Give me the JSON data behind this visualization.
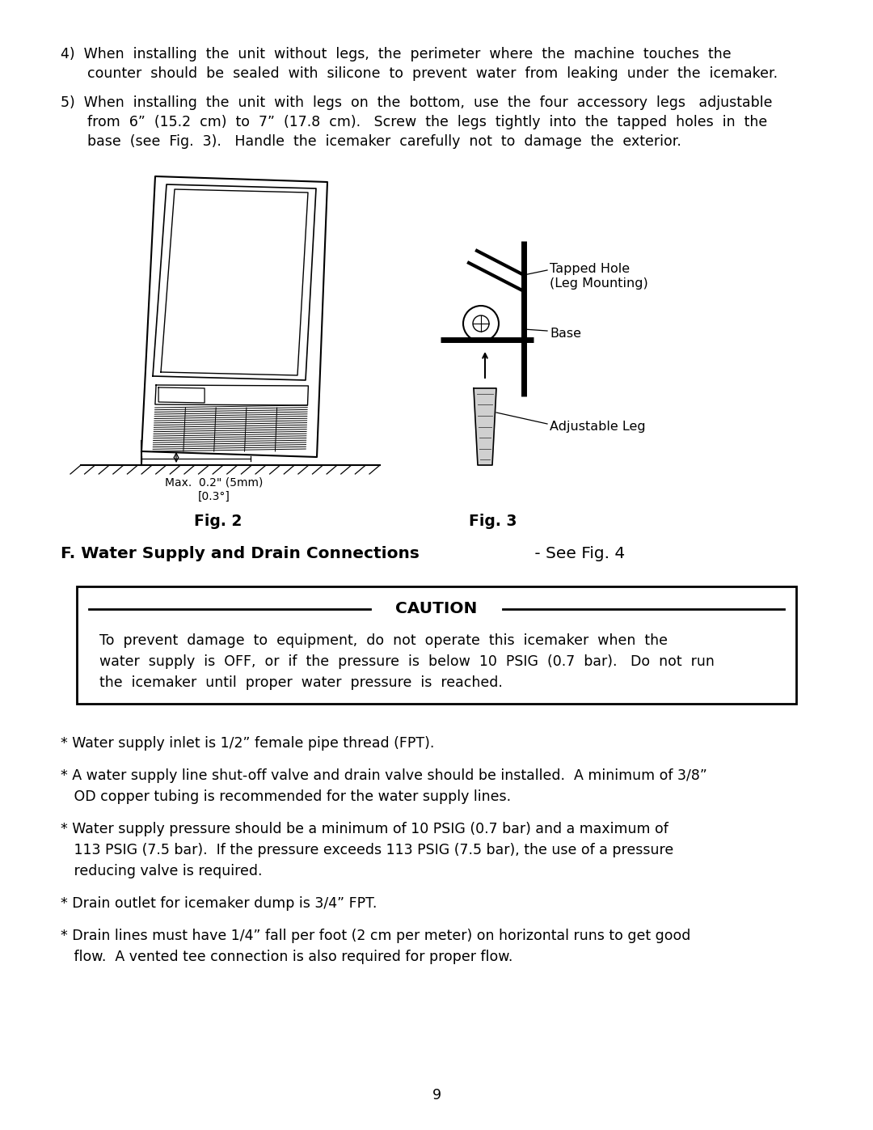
{
  "bg_color": "#ffffff",
  "text_color": "#000000",
  "para4_line1": "4)  When  installing  the  unit  without  legs,  the  perimeter  where  the  machine  touches  the",
  "para4_line2": "      counter  should  be  sealed  with  silicone  to  prevent  water  from  leaking  under  the  icemaker.",
  "para5_line1": "5)  When  installing  the  unit  with  legs  on  the  bottom,  use  the  four  accessory  legs   adjustable",
  "para5_line2": "      from  6”  (15.2  cm)  to  7”  (17.8  cm).   Screw  the  legs  tightly  into  the  tapped  holes  in  the",
  "para5_line3": "      base  (see  Fig.  3).   Handle  the  icemaker  carefully  not  to  damage  the  exterior.",
  "fig2_label": "Fig. 2",
  "fig3_label": "Fig. 3",
  "fig2_sublabel1": "Max.  0.2\" (5mm)",
  "fig2_sublabel2": "[0.3°]",
  "fig3_tapped1": "Tapped Hole",
  "fig3_tapped2": "(Leg Mounting)",
  "fig3_base": "Base",
  "fig3_leg": "Adjustable Leg",
  "section_bold": "F. Water Supply and Drain Connections",
  "section_normal": " - See Fig. 4",
  "caution_title": "CAUTION",
  "caution_line1": "To  prevent  damage  to  equipment,  do  not  operate  this  icemaker  when  the",
  "caution_line2": "water  supply  is  OFF,  or  if  the  pressure  is  below  10  PSIG  (0.7  bar).   Do  not  run",
  "caution_line3": "the  icemaker  until  proper  water  pressure  is  reached.",
  "b1": "* Water supply inlet is 1/2” female pipe thread (FPT).",
  "b2a": "* A water supply line shut-off valve and drain valve should be installed.  A minimum of 3/8”",
  "b2b": "   OD copper tubing is recommended for the water supply lines.",
  "b3a": "* Water supply pressure should be a minimum of 10 PSIG (0.7 bar) and a maximum of",
  "b3b": "   113 PSIG (7.5 bar).  If the pressure exceeds 113 PSIG (7.5 bar), the use of a pressure",
  "b3c": "   reducing valve is required.",
  "b4": "* Drain outlet for icemaker dump is 3/4” FPT.",
  "b5a": "* Drain lines must have 1/4” fall per foot (2 cm per meter) on horizontal runs to get good",
  "b5b": "   flow.  A vented tee connection is also required for proper flow.",
  "page_number": "9",
  "fs_body": 12.5,
  "fs_title": 14.5,
  "fs_caution": 14.5,
  "fs_small": 10.0,
  "fs_fig_label": 13.5
}
